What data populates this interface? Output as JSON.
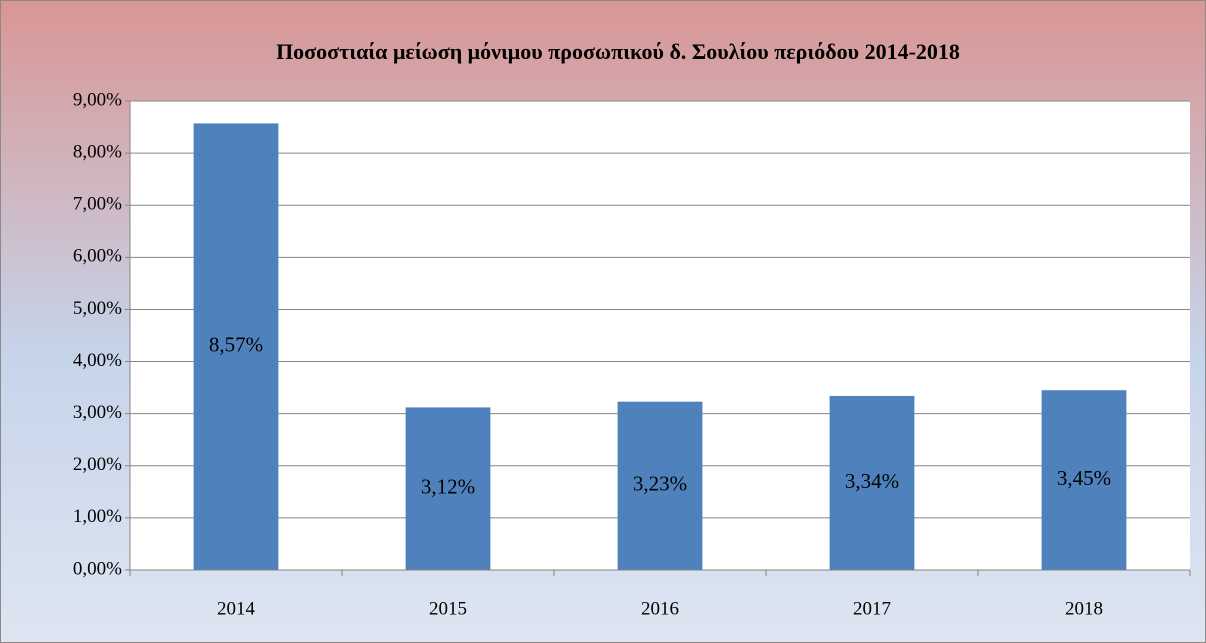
{
  "chart_data": {
    "type": "bar",
    "title": "Ποσοστιαία μείωση μόνιμου προσωπικού δ. Σουλίου περιόδου 2014-2018",
    "categories": [
      "2014",
      "2015",
      "2016",
      "2017",
      "2018"
    ],
    "values": [
      8.57,
      3.12,
      3.23,
      3.34,
      3.45
    ],
    "value_labels": [
      "8,57%",
      "3,12%",
      "3,23%",
      "3,34%",
      "3,45%"
    ],
    "color": "#4f81bd",
    "ylim": [
      0,
      9
    ],
    "yticks": [
      {
        "value": 0,
        "label": "0,00%"
      },
      {
        "value": 1,
        "label": "1,00%"
      },
      {
        "value": 2,
        "label": "2,00%"
      },
      {
        "value": 3,
        "label": "3,00%"
      },
      {
        "value": 4,
        "label": "4,00%"
      },
      {
        "value": 5,
        "label": "5,00%"
      },
      {
        "value": 6,
        "label": "6,00%"
      },
      {
        "value": 7,
        "label": "7,00%"
      },
      {
        "value": 8,
        "label": "8,00%"
      },
      {
        "value": 9,
        "label": "9,00%"
      }
    ],
    "grid": true
  }
}
